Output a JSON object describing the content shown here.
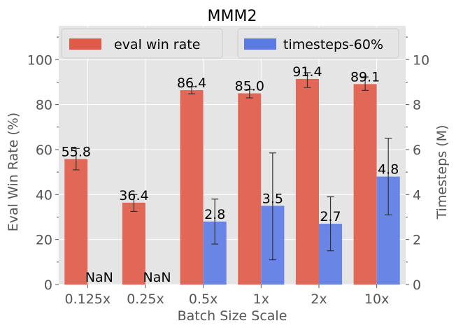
{
  "chart_data": {
    "type": "bar",
    "title": "MMM2",
    "xlabel": "Batch Size Scale",
    "ylabel": "Eval Win Rate (%)",
    "y2label": "Timesteps (M)",
    "categories": [
      "0.125x",
      "0.25x",
      "0.5x",
      "1x",
      "2x",
      "10x"
    ],
    "ylim": [
      0,
      115
    ],
    "y2lim": [
      0,
      11.5
    ],
    "yticks": [
      0,
      20,
      40,
      60,
      80,
      100
    ],
    "y2ticks": [
      0,
      2,
      4,
      6,
      8,
      10
    ],
    "grid": true,
    "legend_position": "top",
    "series": [
      {
        "name": "eval win rate",
        "axis": "left",
        "color": "#e05a47",
        "values": [
          55.8,
          36.4,
          86.4,
          85.0,
          91.4,
          89.1
        ],
        "labels": [
          "55.8",
          "36.4",
          "86.4",
          "85.0",
          "91.4",
          "89.1"
        ],
        "err_low": [
          51.0,
          32.5,
          84.8,
          83.0,
          87.6,
          86.3
        ],
        "err_high": [
          60.5,
          40.0,
          88.0,
          86.8,
          94.2,
          92.3
        ]
      },
      {
        "name": "timesteps-60%",
        "axis": "right",
        "color": "#5b7be3",
        "values": [
          null,
          null,
          2.8,
          3.5,
          2.7,
          4.8
        ],
        "labels": [
          "NaN",
          "NaN",
          "2.8",
          "3.5",
          "2.7",
          "4.8"
        ],
        "err_low": [
          null,
          null,
          1.8,
          1.1,
          1.5,
          3.1
        ],
        "err_high": [
          null,
          null,
          3.8,
          5.85,
          3.9,
          6.5
        ]
      }
    ]
  }
}
